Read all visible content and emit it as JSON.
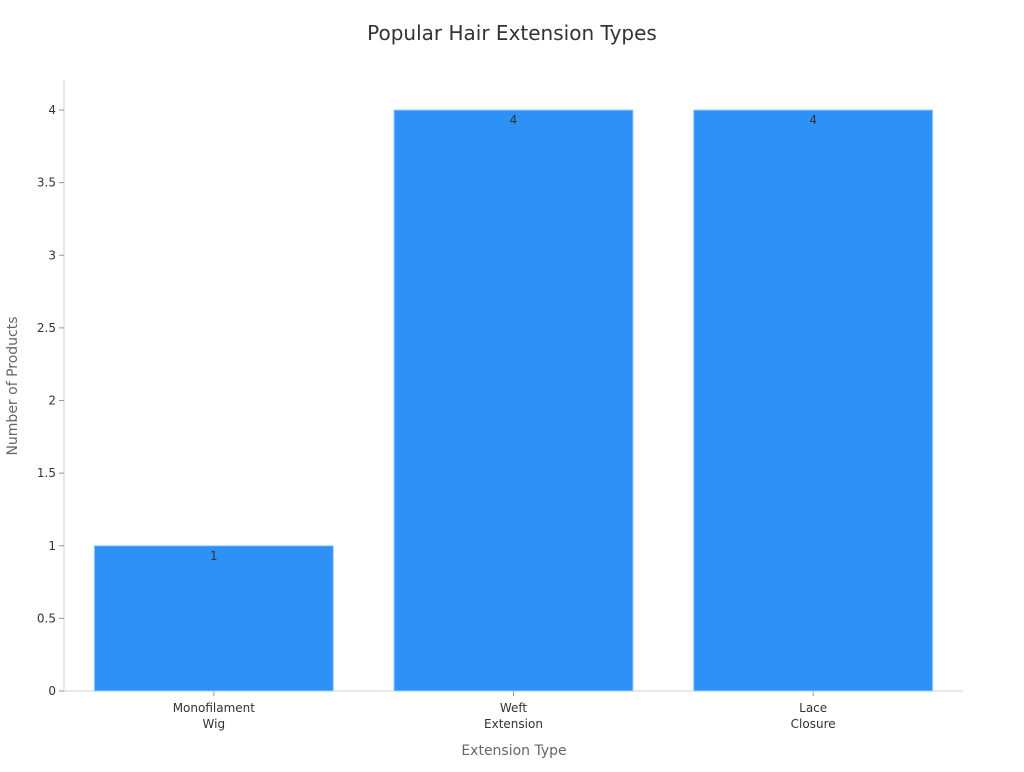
{
  "chart_data": {
    "type": "bar",
    "title": "Popular Hair Extension Types",
    "xlabel": "Extension Type",
    "ylabel": "Number of Products",
    "categories": [
      [
        "Monofilament",
        "Wig"
      ],
      [
        "Weft",
        "Extension"
      ],
      [
        "Lace",
        "Closure"
      ]
    ],
    "values": [
      1,
      4,
      4
    ],
    "data_labels": [
      "1",
      "4",
      "4"
    ],
    "ylim": [
      0,
      4.2
    ],
    "yticks": [
      0,
      0.5,
      1,
      1.5,
      2,
      2.5,
      3,
      3.5,
      4
    ],
    "ytick_labels": [
      "0",
      "0.5",
      "1",
      "1.5",
      "2",
      "2.5",
      "3",
      "3.5",
      "4"
    ],
    "grid": false,
    "colors": {
      "bar": "#2d91f7",
      "bar_edge": "#9fd0fb",
      "axis": "#d0d0d0",
      "text": "#333333",
      "label": "#666666"
    }
  }
}
